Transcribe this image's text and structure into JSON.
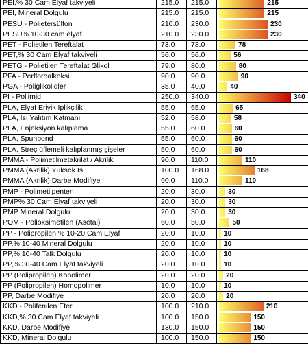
{
  "bar_colors": {
    "low": "#ffff66",
    "high": "#cc0000"
  },
  "scale_max": 340,
  "rows": [
    {
      "name": "PEI,% 30 Cam Elyaf takviyeli",
      "v1": "215.0",
      "v2": "215.0",
      "bar": 215,
      "label": "215"
    },
    {
      "name": "PEI, Mineral Dolgulu",
      "v1": "215.0",
      "v2": "215.0",
      "bar": 215,
      "label": "215"
    },
    {
      "name": "PESU - Polietersülfon",
      "v1": "210.0",
      "v2": "230.0",
      "bar": 230,
      "label": "230"
    },
    {
      "name": "PESU% 10-30 cam elyaf",
      "v1": "210.0",
      "v2": "230.0",
      "bar": 230,
      "label": "230"
    },
    {
      "name": "PET - Polietilen Tereftalat",
      "v1": "73.0",
      "v2": "78.0",
      "bar": 78,
      "label": "78"
    },
    {
      "name": "PET,% 30 Cam Elyaf takviyeli",
      "v1": "56.0",
      "v2": "56.0",
      "bar": 56,
      "label": "56"
    },
    {
      "name": "PETG - Polietilen Tereftalat Glikol",
      "v1": "79.0",
      "v2": "80.0",
      "bar": 80,
      "label": "80"
    },
    {
      "name": "PFA - Perfloroalkoksi",
      "v1": "90.0",
      "v2": "90.0",
      "bar": 90,
      "label": "90"
    },
    {
      "name": "PGA - Poliglikolidler",
      "v1": "35.0",
      "v2": "40.0",
      "bar": 40,
      "label": "40"
    },
    {
      "name": "PI - Poliimid",
      "v1": "250.0",
      "v2": "340.0",
      "bar": 340,
      "label": "340"
    },
    {
      "name": "PLA, Elyaf Eriyik İplikçilik",
      "v1": "55.0",
      "v2": "65.0",
      "bar": 65,
      "label": "65"
    },
    {
      "name": "PLA, Isı Yalıtım Katmanı",
      "v1": "52.0",
      "v2": "58.0",
      "bar": 58,
      "label": "58"
    },
    {
      "name": "PLA, Enjeksiyon kalıplama",
      "v1": "55.0",
      "v2": "60.0",
      "bar": 60,
      "label": "60"
    },
    {
      "name": "PLA, Spunbond",
      "v1": "55.0",
      "v2": "60.0",
      "bar": 60,
      "label": "60"
    },
    {
      "name": "PLA, Streç üflemeli kalıplanmış şişeler",
      "v1": "50.0",
      "v2": "60.0",
      "bar": 60,
      "label": "60"
    },
    {
      "name": "PMMA - Polimetilmetakrilat / Akrilik",
      "v1": "90.0",
      "v2": "110.0",
      "bar": 110,
      "label": "110"
    },
    {
      "name": "PMMA (Akrilik) Yüksek Isı",
      "v1": "100.0",
      "v2": "168.0",
      "bar": 168,
      "label": "168"
    },
    {
      "name": "PMMA (Akrilik) Darbe Modifiye",
      "v1": "90.0",
      "v2": "110.0",
      "bar": 110,
      "label": "110"
    },
    {
      "name": "PMP - Polimetilpenten",
      "v1": "20.0",
      "v2": "30.0",
      "bar": 30,
      "label": "30"
    },
    {
      "name": "PMP% 30 Cam Elyaf takviyeli",
      "v1": "20.0",
      "v2": "30.0",
      "bar": 30,
      "label": "30"
    },
    {
      "name": "PMP Mineral Dolgulu",
      "v1": "20.0",
      "v2": "30.0",
      "bar": 30,
      "label": "30"
    },
    {
      "name": "POM - Polioksimetilen (Asetal)",
      "v1": "60.0",
      "v2": "50.0",
      "bar": 50,
      "label": "50"
    },
    {
      "name": "PP - Polipropilen % 10-20 Cam Elyaf",
      "v1": "20.0",
      "v2": "10.0",
      "bar": 10,
      "label": "10"
    },
    {
      "name": "PP,% 10-40 Mineral Dolgulu",
      "v1": "20.0",
      "v2": "10.0",
      "bar": 10,
      "label": "10"
    },
    {
      "name": "PP,% 10-40 Talk Dolgulu",
      "v1": "20.0",
      "v2": "10.0",
      "bar": 10,
      "label": "10"
    },
    {
      "name": "PP,% 30-40 Cam Elyaf takviyeli",
      "v1": "20.0",
      "v2": "10.0",
      "bar": 10,
      "label": "10"
    },
    {
      "name": "PP (Polipropilen) Kopolimer",
      "v1": "20.0",
      "v2": "20.0",
      "bar": 20,
      "label": "20"
    },
    {
      "name": "PP (Polipropilen) Homopolimer",
      "v1": "10.0",
      "v2": "10.0",
      "bar": 10,
      "label": "10"
    },
    {
      "name": "PP, Darbe Modifiye",
      "v1": "20.0",
      "v2": "20.0",
      "bar": 20,
      "label": "20"
    },
    {
      "name": "KKD - Polifenilen Eter",
      "v1": "100.0",
      "v2": "210.0",
      "bar": 210,
      "label": "210"
    },
    {
      "name": "KKD,% 30 Cam Elyaf takviyeli",
      "v1": "100.0",
      "v2": "150.0",
      "bar": 150,
      "label": "150"
    },
    {
      "name": "KKD, Darbe Modifiye",
      "v1": "130.0",
      "v2": "150.0",
      "bar": 150,
      "label": "150"
    },
    {
      "name": "KKD, Mineral Dolgulu",
      "v1": "100.0",
      "v2": "150.0",
      "bar": 150,
      "label": "150"
    }
  ]
}
